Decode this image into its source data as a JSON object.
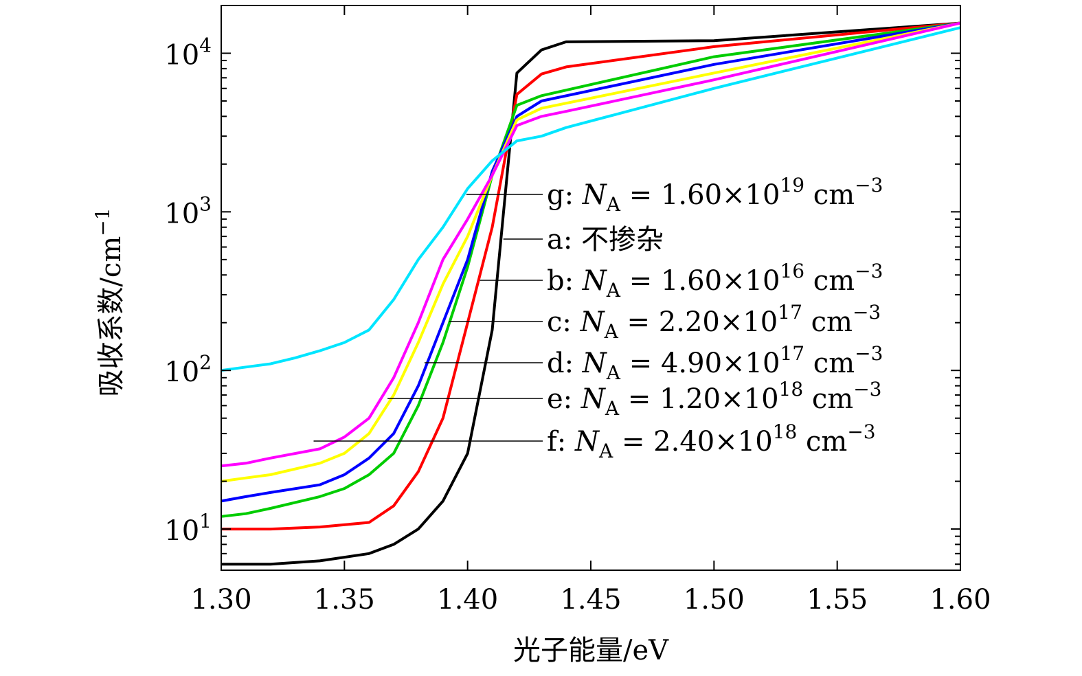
{
  "chart_data": {
    "type": "line",
    "title": "",
    "xlabel": "光子能量/eV",
    "ylabel": "吸收系数/cm",
    "ylabel_sup": "−1",
    "xlim": [
      1.3,
      1.6
    ],
    "ylim": [
      5.5,
      20000
    ],
    "yscale": "log",
    "grid": false,
    "x_ticks": [
      1.3,
      1.35,
      1.4,
      1.45,
      1.5,
      1.55,
      1.6
    ],
    "x_tick_labels": [
      "1.30",
      "1.35",
      "1.40",
      "1.45",
      "1.50",
      "1.55",
      "1.60"
    ],
    "y_ticks": [
      10,
      100,
      1000,
      10000
    ],
    "y_tick_labels": [
      {
        "base": "10",
        "exp": "1"
      },
      {
        "base": "10",
        "exp": "2"
      },
      {
        "base": "10",
        "exp": "3"
      },
      {
        "base": "10",
        "exp": "4"
      }
    ],
    "series": [
      {
        "id": "a",
        "name": "a: 不掺杂",
        "color": "#000000",
        "x": [
          1.3,
          1.32,
          1.34,
          1.36,
          1.37,
          1.38,
          1.39,
          1.4,
          1.41,
          1.42,
          1.43,
          1.44,
          1.5,
          1.6
        ],
        "y": [
          6,
          6,
          6.3,
          7,
          8,
          10,
          15,
          30,
          180,
          7500,
          10500,
          11800,
          12000,
          15500
        ]
      },
      {
        "id": "b",
        "name": "b: N_A = 1.60×10^16 cm^-3",
        "color": "#ff0000",
        "x": [
          1.3,
          1.32,
          1.34,
          1.36,
          1.37,
          1.38,
          1.39,
          1.4,
          1.41,
          1.42,
          1.43,
          1.44,
          1.5,
          1.6
        ],
        "y": [
          10,
          10,
          10.3,
          11,
          14,
          23,
          50,
          200,
          800,
          5500,
          7400,
          8200,
          11000,
          15500
        ]
      },
      {
        "id": "c",
        "name": "c: N_A = 2.20×10^17 cm^-3",
        "color": "#00cc00",
        "x": [
          1.3,
          1.31,
          1.32,
          1.34,
          1.35,
          1.36,
          1.37,
          1.38,
          1.39,
          1.4,
          1.41,
          1.42,
          1.43,
          1.5,
          1.6
        ],
        "y": [
          12,
          12.5,
          13.5,
          16,
          18,
          22,
          30,
          60,
          150,
          450,
          1700,
          4700,
          5400,
          9500,
          15500
        ]
      },
      {
        "id": "d",
        "name": "d: N_A = 4.90×10^17 cm^-3",
        "color": "#0000ff",
        "x": [
          1.3,
          1.31,
          1.32,
          1.34,
          1.35,
          1.36,
          1.37,
          1.38,
          1.39,
          1.4,
          1.41,
          1.42,
          1.43,
          1.5,
          1.6
        ],
        "y": [
          15,
          16,
          17,
          19,
          22,
          28,
          40,
          80,
          200,
          500,
          1800,
          4000,
          5000,
          8500,
          15500
        ]
      },
      {
        "id": "e",
        "name": "e: N_A = 1.20×10^18 cm^-3",
        "color": "#ffff00",
        "x": [
          1.3,
          1.31,
          1.32,
          1.34,
          1.35,
          1.36,
          1.37,
          1.38,
          1.39,
          1.4,
          1.41,
          1.42,
          1.43,
          1.5,
          1.6
        ],
        "y": [
          20,
          21,
          22,
          26,
          30,
          40,
          70,
          150,
          350,
          700,
          1700,
          3800,
          4500,
          7500,
          15500
        ]
      },
      {
        "id": "f",
        "name": "f: N_A = 2.40×10^18 cm^-3",
        "color": "#ff00ff",
        "x": [
          1.3,
          1.31,
          1.32,
          1.34,
          1.35,
          1.36,
          1.37,
          1.38,
          1.39,
          1.4,
          1.41,
          1.42,
          1.43,
          1.44,
          1.5,
          1.6
        ],
        "y": [
          25,
          26,
          28,
          32,
          38,
          50,
          90,
          200,
          500,
          900,
          1700,
          3500,
          4000,
          4300,
          6800,
          15500
        ]
      },
      {
        "id": "g",
        "name": "g: N_A = 1.60×10^19 cm^-3",
        "color": "#00e5ff",
        "x": [
          1.3,
          1.31,
          1.32,
          1.33,
          1.34,
          1.35,
          1.36,
          1.37,
          1.38,
          1.39,
          1.4,
          1.41,
          1.42,
          1.43,
          1.44,
          1.5,
          1.6
        ],
        "y": [
          100,
          105,
          110,
          120,
          133,
          150,
          180,
          280,
          500,
          800,
          1400,
          2100,
          2800,
          3000,
          3400,
          6000,
          14500
        ]
      }
    ],
    "legend": {
      "placement": "center-right, with leader lines to curves",
      "entries": [
        {
          "series": "g",
          "tag": "g:",
          "var": "N",
          "sub": "A",
          "eq": "= 1.60×10",
          "exp": "19",
          "unit": "cm",
          "unit_exp": "−3",
          "anchor_x": 1.3995,
          "anchor_y": 1260
        },
        {
          "series": "a",
          "tag": "a:",
          "text": "不掺杂",
          "anchor_x": 1.4145,
          "anchor_y": 620
        },
        {
          "series": "b",
          "tag": "b:",
          "var": "N",
          "sub": "A",
          "eq": "= 1.60×10",
          "exp": "16",
          "unit": "cm",
          "unit_exp": "−3",
          "anchor_x": 1.405,
          "anchor_y": 320
        },
        {
          "series": "c",
          "tag": "c:",
          "var": "N",
          "sub": "A",
          "eq": "= 2.20×10",
          "exp": "17",
          "unit": "cm",
          "unit_exp": "−3",
          "anchor_x": 1.3925,
          "anchor_y": 175
        },
        {
          "series": "d",
          "tag": "d:",
          "var": "N",
          "sub": "A",
          "eq": "= 4.90×10",
          "exp": "17",
          "unit": "cm",
          "unit_exp": "−3",
          "anchor_x": 1.3825,
          "anchor_y": 97
        },
        {
          "series": "e",
          "tag": "e:",
          "var": "N",
          "sub": "A",
          "eq": "= 1.20×10",
          "exp": "18",
          "unit": "cm",
          "unit_exp": "−3",
          "anchor_x": 1.3675,
          "anchor_y": 57
        },
        {
          "series": "f",
          "tag": "f:",
          "var": "N",
          "sub": "A",
          "eq": "= 2.40×10",
          "exp": "18",
          "unit": "cm",
          "unit_exp": "−3",
          "anchor_x": 1.3375,
          "anchor_y": 31
        }
      ]
    }
  }
}
